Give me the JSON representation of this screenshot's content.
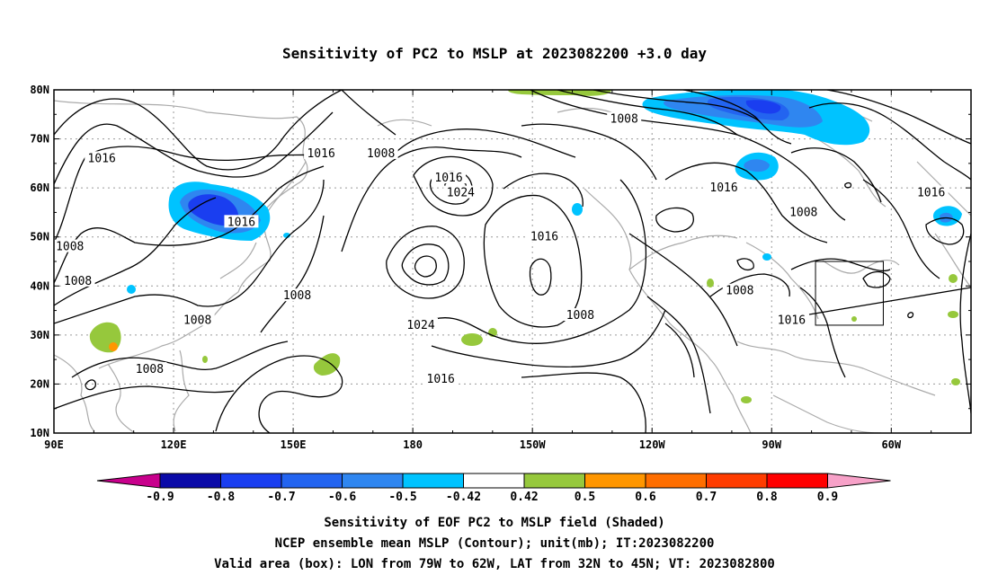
{
  "title": "Sensitivity of PC2 to MSLP at 2023082200 +3.0 day",
  "axes": {
    "lat_labels": [
      "80N",
      "70N",
      "60N",
      "50N",
      "40N",
      "30N",
      "20N",
      "10N"
    ],
    "lon_labels": [
      "90E",
      "120E",
      "150E",
      "180",
      "150W",
      "120W",
      "90W",
      "60W"
    ]
  },
  "contour_labels": [
    {
      "text": "1016",
      "lon": 102,
      "lat": 66
    },
    {
      "text": "1008",
      "lon": 94,
      "lat": 48
    },
    {
      "text": "1008",
      "lon": 96,
      "lat": 41
    },
    {
      "text": "1008",
      "lon": 126,
      "lat": 33
    },
    {
      "text": "1008",
      "lon": 114,
      "lat": 23
    },
    {
      "text": "1016",
      "lon": 137,
      "lat": 53
    },
    {
      "text": "1016",
      "lon": 157,
      "lat": 67
    },
    {
      "text": "1008",
      "lon": 172,
      "lat": 67
    },
    {
      "text": "1016",
      "lon": 189,
      "lat": 62
    },
    {
      "text": "1024",
      "lon": 192,
      "lat": 59
    },
    {
      "text": "1008",
      "lon": 151,
      "lat": 38
    },
    {
      "text": "1024",
      "lon": 182,
      "lat": 32
    },
    {
      "text": "1016",
      "lon": 187,
      "lat": 21
    },
    {
      "text": "1016",
      "lon": 213,
      "lat": 50
    },
    {
      "text": "1008",
      "lon": 222,
      "lat": 34
    },
    {
      "text": "1008",
      "lon": 233,
      "lat": 74
    },
    {
      "text": "1016",
      "lon": 258,
      "lat": 60
    },
    {
      "text": "1008",
      "lon": 278,
      "lat": 55
    },
    {
      "text": "1016",
      "lon": 310,
      "lat": 59
    },
    {
      "text": "1008",
      "lon": 262,
      "lat": 39
    },
    {
      "text": "1016",
      "lon": 275,
      "lat": 33
    }
  ],
  "valid_box": {
    "lon_min": 281,
    "lon_max": 298,
    "lat_min": 32,
    "lat_max": 45
  },
  "colorbar": {
    "labels": [
      "-0.9",
      "-0.8",
      "-0.7",
      "-0.6",
      "-0.5",
      "-0.42",
      "0.42",
      "0.5",
      "0.6",
      "0.7",
      "0.8",
      "0.9"
    ],
    "colors": {
      "low_tip": "#c8008c",
      "high_tip": "#f7a1c8",
      "bins": [
        "#0a0aa8",
        "#1a3ef0",
        "#2364f0",
        "#2f86f0",
        "#00c3ff",
        "#ffffff",
        "#96c83c",
        "#ff9600",
        "#ff6e00",
        "#ff3c00",
        "#ff0000"
      ]
    }
  },
  "caption": {
    "line1": "Sensitivity of EOF PC2 to MSLP field (Shaded)",
    "line2": "NCEP ensemble mean MSLP (Contour); unit(mb); IT:2023082200",
    "line3": "Valid area (box): LON from 79W to 62W, LAT from 32N to 45N; VT: 2023082800"
  }
}
